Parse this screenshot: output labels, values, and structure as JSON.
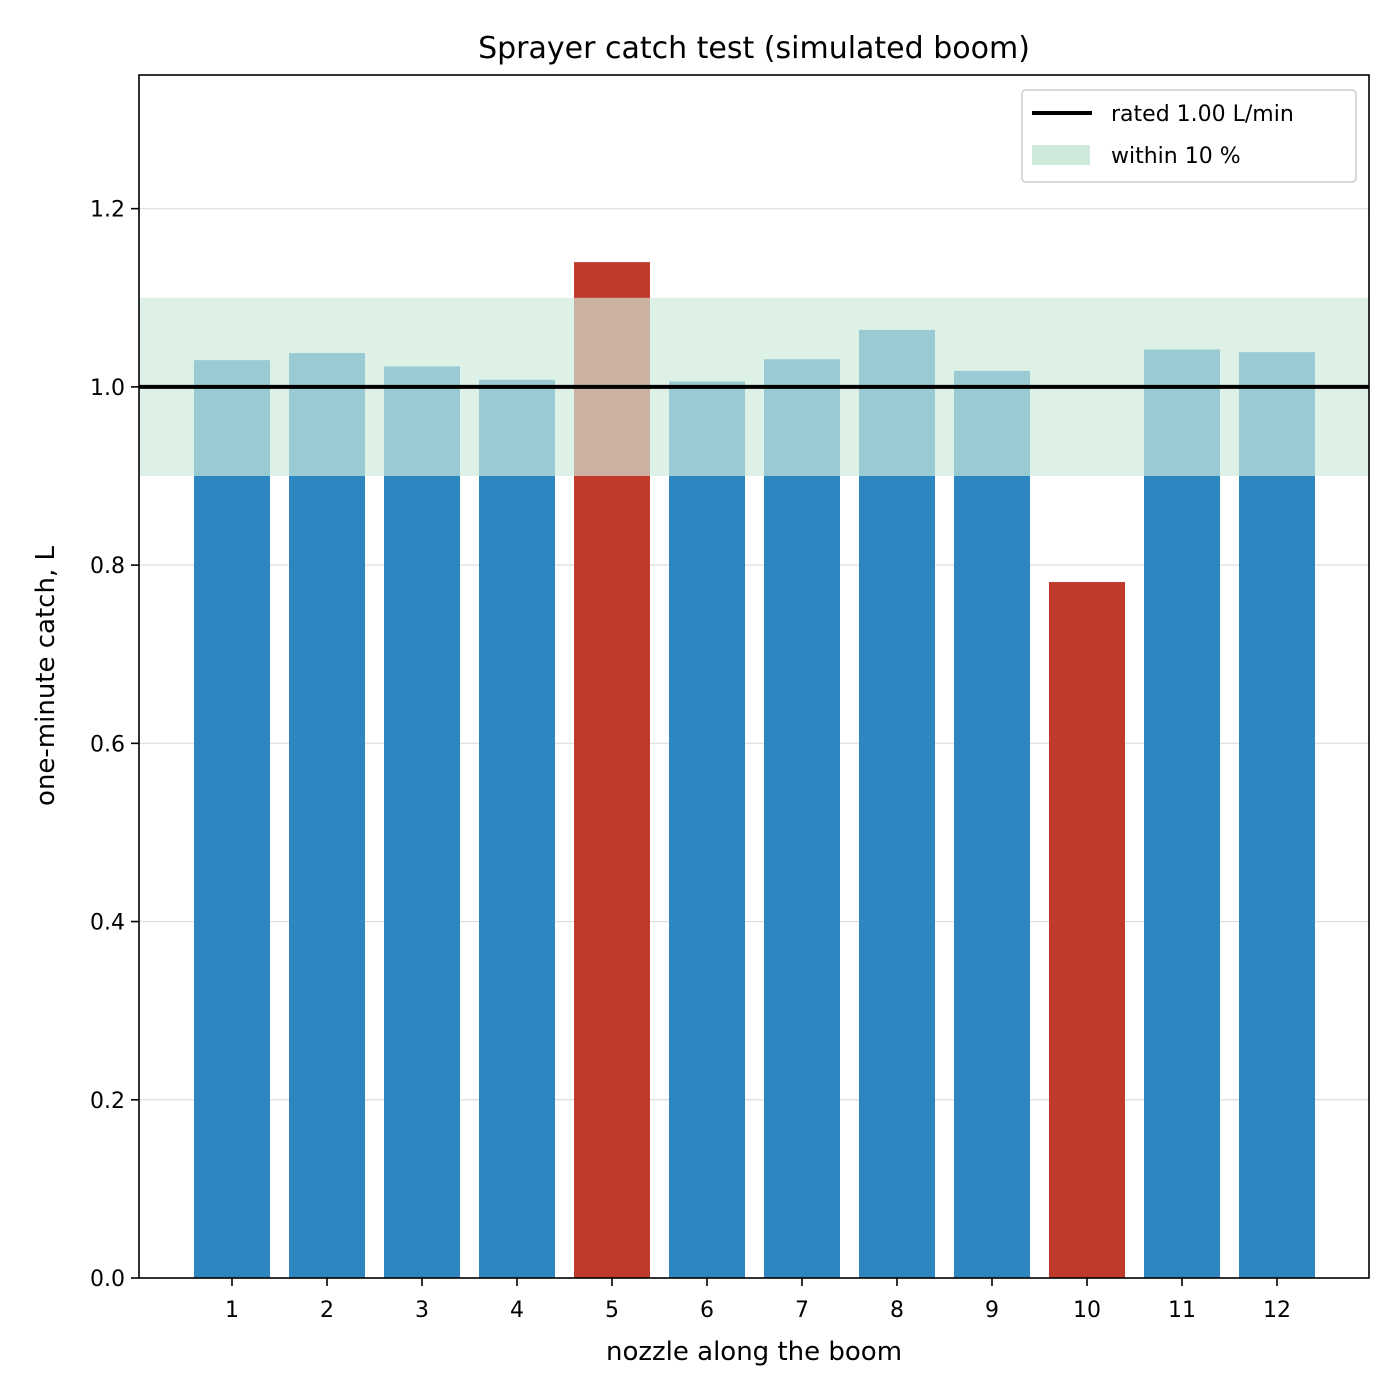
{
  "chart_data": {
    "type": "bar",
    "title": "Sprayer catch test (simulated boom)",
    "xlabel": "nozzle along the boom",
    "ylabel": "one-minute catch, L",
    "categories": [
      "1",
      "2",
      "3",
      "4",
      "5",
      "6",
      "7",
      "8",
      "9",
      "10",
      "11",
      "12"
    ],
    "values": [
      1.03,
      1.038,
      1.023,
      1.008,
      1.14,
      1.006,
      1.031,
      1.064,
      1.018,
      0.781,
      1.042,
      1.039
    ],
    "out_of_tolerance": [
      false,
      false,
      false,
      false,
      true,
      false,
      false,
      false,
      false,
      true,
      false,
      false
    ],
    "ylim": [
      0,
      1.35
    ],
    "yticks": [
      "0.0",
      "0.2",
      "0.4",
      "0.6",
      "0.8",
      "1.0",
      "1.2"
    ],
    "ytick_values": [
      0,
      0.2,
      0.4,
      0.6,
      0.8,
      1.0,
      1.2
    ],
    "reference_line": {
      "value": 1.0,
      "label": "rated 1.00 L/min",
      "color": "#000000"
    },
    "tolerance_band": {
      "low": 0.9,
      "high": 1.1,
      "label": "within 10 %",
      "color": "#cfeadb"
    },
    "colors": {
      "in_tolerance": "#2e86c1",
      "out_of_tolerance": "#c0392b"
    },
    "grid": "y",
    "legend_position": "top-right"
  }
}
